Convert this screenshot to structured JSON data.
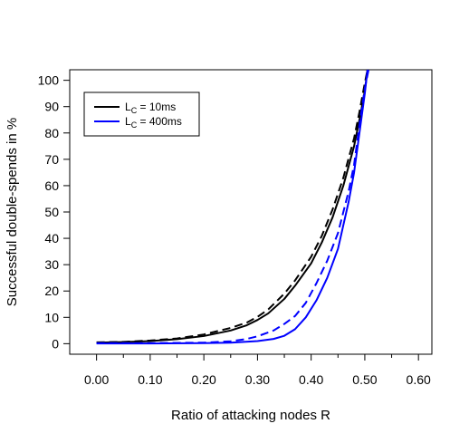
{
  "chart_data": {
    "type": "line",
    "title": "",
    "xlabel": "Ratio of attacking nodes R",
    "ylabel": "Successful double-spends in %",
    "xlim": [
      -0.05,
      0.625
    ],
    "ylim": [
      -4,
      104
    ],
    "x_ticks": [
      "0.00",
      "0.10",
      "0.20",
      "0.30",
      "0.40",
      "0.50",
      "0.60"
    ],
    "y_ticks": [
      "0",
      "10",
      "20",
      "30",
      "40",
      "50",
      "60",
      "70",
      "80",
      "90",
      "100"
    ],
    "grid": false,
    "legend_position": "top-left",
    "legend": [
      {
        "label_main": "L",
        "label_sub": "C",
        "label_rest": " = 10ms",
        "color": "#000000"
      },
      {
        "label_main": "L",
        "label_sub": "C",
        "label_rest": " = 400ms",
        "color": "#0000ff"
      }
    ],
    "series": [
      {
        "color": "#000000",
        "dash": "solid",
        "points": [
          [
            0.0,
            0.4
          ],
          [
            0.05,
            0.6
          ],
          [
            0.1,
            1.0
          ],
          [
            0.15,
            1.7
          ],
          [
            0.2,
            2.9
          ],
          [
            0.25,
            5.0
          ],
          [
            0.28,
            7.0
          ],
          [
            0.3,
            9.0
          ],
          [
            0.32,
            11.5
          ],
          [
            0.35,
            17.0
          ],
          [
            0.37,
            22.0
          ],
          [
            0.4,
            30.5
          ],
          [
            0.42,
            38.5
          ],
          [
            0.44,
            48.0
          ],
          [
            0.46,
            60.0
          ],
          [
            0.48,
            75.0
          ],
          [
            0.49,
            85.0
          ],
          [
            0.5,
            96.0
          ],
          [
            0.505,
            104.0
          ]
        ]
      },
      {
        "color": "#000000",
        "dash": "dashed",
        "points": [
          [
            0.0,
            0.5
          ],
          [
            0.05,
            0.7
          ],
          [
            0.1,
            1.2
          ],
          [
            0.15,
            2.0
          ],
          [
            0.2,
            3.5
          ],
          [
            0.25,
            6.0
          ],
          [
            0.28,
            8.0
          ],
          [
            0.3,
            10.2
          ],
          [
            0.32,
            13.0
          ],
          [
            0.35,
            19.0
          ],
          [
            0.37,
            24.0
          ],
          [
            0.4,
            33.0
          ],
          [
            0.42,
            41.0
          ],
          [
            0.44,
            51.0
          ],
          [
            0.46,
            63.0
          ],
          [
            0.48,
            78.0
          ],
          [
            0.49,
            88.0
          ],
          [
            0.5,
            99.0
          ],
          [
            0.505,
            104.0
          ]
        ]
      },
      {
        "color": "#0000ff",
        "dash": "solid",
        "points": [
          [
            0.0,
            0.1
          ],
          [
            0.1,
            0.1
          ],
          [
            0.2,
            0.2
          ],
          [
            0.25,
            0.4
          ],
          [
            0.3,
            1.0
          ],
          [
            0.33,
            1.8
          ],
          [
            0.35,
            3.0
          ],
          [
            0.37,
            5.5
          ],
          [
            0.39,
            10.0
          ],
          [
            0.41,
            16.5
          ],
          [
            0.43,
            25.0
          ],
          [
            0.45,
            36.0
          ],
          [
            0.47,
            54.0
          ],
          [
            0.48,
            65.0
          ],
          [
            0.49,
            80.0
          ],
          [
            0.5,
            95.0
          ],
          [
            0.505,
            104.0
          ]
        ]
      },
      {
        "color": "#0000ff",
        "dash": "dashed",
        "points": [
          [
            0.0,
            0.2
          ],
          [
            0.1,
            0.2
          ],
          [
            0.2,
            0.4
          ],
          [
            0.25,
            0.9
          ],
          [
            0.28,
            1.8
          ],
          [
            0.3,
            2.8
          ],
          [
            0.33,
            5.0
          ],
          [
            0.35,
            7.5
          ],
          [
            0.37,
            10.5
          ],
          [
            0.39,
            15.5
          ],
          [
            0.41,
            23.0
          ],
          [
            0.43,
            31.5
          ],
          [
            0.45,
            42.0
          ],
          [
            0.47,
            58.0
          ],
          [
            0.48,
            68.0
          ],
          [
            0.49,
            83.0
          ],
          [
            0.5,
            97.0
          ],
          [
            0.507,
            104.0
          ]
        ]
      }
    ]
  }
}
